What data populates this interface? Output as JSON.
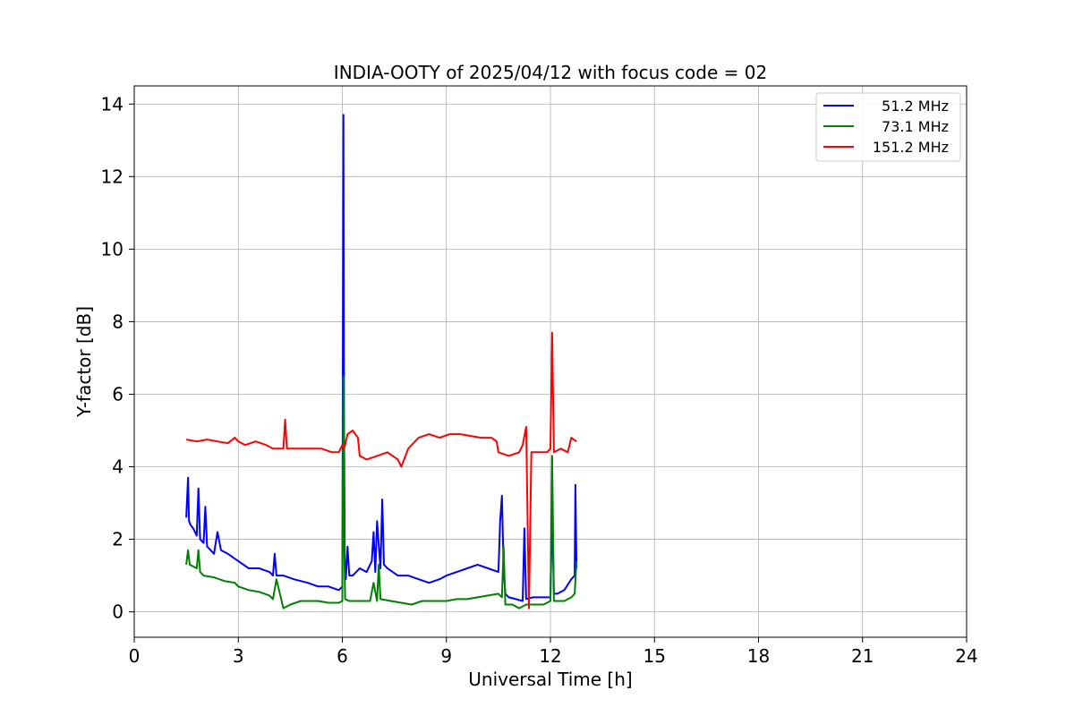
{
  "chart_data": {
    "type": "line",
    "title": "INDIA-OOTY of 2025/04/12 with focus code = 02",
    "xlabel": "Universal Time [h]",
    "ylabel": "Y-factor [dB]",
    "xlim": [
      0,
      24
    ],
    "ylim": [
      -0.7,
      14.5
    ],
    "xticks": [
      0,
      3,
      6,
      9,
      12,
      15,
      18,
      21,
      24
    ],
    "yticks": [
      0,
      2,
      4,
      6,
      8,
      10,
      12,
      14
    ],
    "grid": true,
    "legend_position": "top-right",
    "series": [
      {
        "name": "51.2 MHz",
        "color": "#0000ff",
        "x": [
          1.5,
          1.55,
          1.58,
          1.62,
          1.7,
          1.8,
          1.85,
          1.9,
          2.0,
          2.05,
          2.1,
          2.2,
          2.3,
          2.4,
          2.5,
          2.7,
          3.0,
          3.3,
          3.6,
          3.9,
          4.0,
          4.05,
          4.1,
          4.3,
          4.6,
          5.0,
          5.3,
          5.6,
          5.9,
          6.0,
          6.03,
          6.05,
          6.07,
          6.1,
          6.15,
          6.2,
          6.3,
          6.5,
          6.7,
          6.85,
          6.9,
          6.95,
          7.0,
          7.1,
          7.15,
          7.2,
          7.3,
          7.6,
          7.9,
          8.2,
          8.5,
          8.8,
          9.0,
          9.3,
          9.6,
          9.9,
          10.2,
          10.5,
          10.55,
          10.6,
          10.65,
          10.7,
          10.8,
          11.0,
          11.2,
          11.25,
          11.3,
          11.5,
          11.8,
          12.0,
          12.05,
          12.1,
          12.2,
          12.4,
          12.6,
          12.7,
          12.72,
          12.75
        ],
        "y": [
          2.6,
          3.7,
          2.5,
          2.4,
          2.3,
          2.1,
          3.4,
          2.0,
          1.9,
          2.9,
          1.8,
          1.7,
          1.6,
          2.2,
          1.7,
          1.6,
          1.4,
          1.2,
          1.2,
          1.1,
          1.0,
          1.6,
          1.0,
          1.0,
          0.9,
          0.8,
          0.7,
          0.7,
          0.6,
          0.7,
          13.7,
          5.0,
          1.5,
          0.9,
          1.8,
          1.0,
          1.0,
          1.2,
          1.1,
          1.4,
          2.2,
          1.1,
          2.5,
          1.2,
          3.1,
          1.3,
          1.2,
          1.0,
          1.0,
          0.9,
          0.8,
          0.9,
          1.0,
          1.1,
          1.2,
          1.3,
          1.2,
          1.1,
          2.5,
          3.2,
          1.2,
          0.5,
          0.4,
          0.35,
          0.3,
          2.3,
          0.35,
          0.4,
          0.4,
          0.4,
          2.8,
          0.5,
          0.5,
          0.6,
          0.9,
          1.0,
          3.5,
          1.2
        ]
      },
      {
        "name": "73.1 MHz",
        "color": "#008000",
        "x": [
          1.5,
          1.55,
          1.6,
          1.8,
          1.85,
          1.9,
          2.0,
          2.3,
          2.6,
          2.9,
          3.0,
          3.3,
          3.6,
          3.9,
          4.0,
          4.1,
          4.3,
          4.5,
          4.8,
          5.0,
          5.3,
          5.6,
          5.9,
          6.0,
          6.03,
          6.05,
          6.08,
          6.2,
          6.5,
          6.8,
          6.9,
          7.0,
          7.05,
          7.1,
          7.4,
          7.7,
          8.0,
          8.3,
          8.6,
          9.0,
          9.3,
          9.6,
          9.9,
          10.2,
          10.5,
          10.6,
          10.65,
          10.7,
          10.9,
          11.1,
          11.3,
          11.5,
          11.8,
          12.0,
          12.05,
          12.1,
          12.2,
          12.4,
          12.6,
          12.7,
          12.75
        ],
        "y": [
          1.3,
          1.7,
          1.3,
          1.2,
          1.7,
          1.1,
          1.0,
          0.95,
          0.85,
          0.8,
          0.7,
          0.6,
          0.55,
          0.45,
          0.35,
          0.9,
          0.1,
          0.2,
          0.3,
          0.3,
          0.3,
          0.25,
          0.25,
          0.3,
          6.5,
          2.3,
          0.35,
          0.3,
          0.3,
          0.3,
          0.8,
          0.3,
          1.3,
          0.35,
          0.3,
          0.25,
          0.2,
          0.3,
          0.3,
          0.3,
          0.35,
          0.35,
          0.4,
          0.45,
          0.5,
          0.4,
          1.8,
          0.2,
          0.2,
          0.1,
          0.2,
          0.2,
          0.2,
          0.3,
          4.3,
          0.3,
          0.3,
          0.3,
          0.4,
          0.5,
          1.4
        ]
      },
      {
        "name": "151.2 MHz",
        "color": "#ff0000",
        "x": [
          1.5,
          1.8,
          2.1,
          2.4,
          2.7,
          2.9,
          3.0,
          3.2,
          3.5,
          3.8,
          4.0,
          4.3,
          4.35,
          4.4,
          4.8,
          5.1,
          5.4,
          5.7,
          5.9,
          6.0,
          6.05,
          6.08,
          6.15,
          6.3,
          6.45,
          6.5,
          6.7,
          7.0,
          7.3,
          7.6,
          7.7,
          7.9,
          8.2,
          8.5,
          8.8,
          9.1,
          9.4,
          9.7,
          10.0,
          10.3,
          10.45,
          10.5,
          10.8,
          11.1,
          11.2,
          11.3,
          11.38,
          11.45,
          11.6,
          11.9,
          12.0,
          12.05,
          12.1,
          12.3,
          12.5,
          12.6,
          12.75
        ],
        "y": [
          4.75,
          4.7,
          4.75,
          4.7,
          4.65,
          4.8,
          4.7,
          4.6,
          4.7,
          4.6,
          4.5,
          4.5,
          5.3,
          4.5,
          4.5,
          4.5,
          4.5,
          4.4,
          4.4,
          4.6,
          4.5,
          4.6,
          4.9,
          5.0,
          4.8,
          4.3,
          4.2,
          4.3,
          4.4,
          4.2,
          4.0,
          4.5,
          4.8,
          4.9,
          4.8,
          4.9,
          4.9,
          4.85,
          4.8,
          4.8,
          4.7,
          4.4,
          4.3,
          4.4,
          4.6,
          5.1,
          0.1,
          4.4,
          4.4,
          4.4,
          4.5,
          7.7,
          4.4,
          4.5,
          4.4,
          4.8,
          4.7
        ]
      }
    ]
  }
}
